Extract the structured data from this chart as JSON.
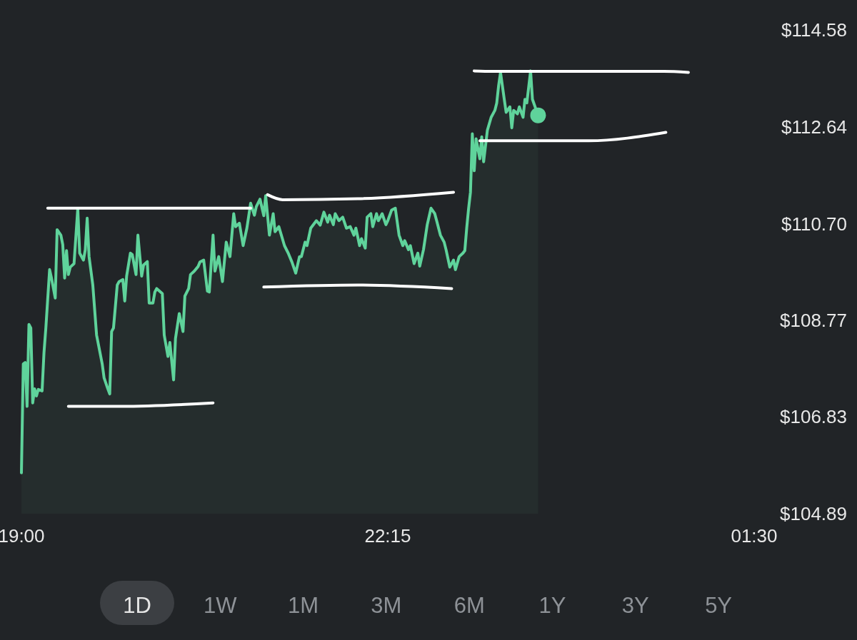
{
  "chart_data": {
    "type": "area",
    "xlim": [
      "2000-01-01T19:00",
      "2000-01-02T01:30"
    ],
    "ylim": [
      104.89,
      114.58
    ],
    "xticks": [
      {
        "value": "2000-01-01T19:00",
        "label": "19:00"
      },
      {
        "value": "2000-01-01T22:15",
        "label": "22:15"
      },
      {
        "value": "2000-01-02T01:30",
        "label": "01:30"
      }
    ],
    "yticks": [
      {
        "value": 104.89,
        "label": "$104.89"
      },
      {
        "value": 106.83,
        "label": "$106.83"
      },
      {
        "value": 108.77,
        "label": "$108.77"
      },
      {
        "value": 110.7,
        "label": "$110.70"
      },
      {
        "value": 112.64,
        "label": "$112.64"
      },
      {
        "value": 114.58,
        "label": "$114.58"
      }
    ],
    "grid": false,
    "annotations": [
      "1D",
      "1W",
      "1M",
      "3M",
      "6M",
      "1Y",
      "3Y",
      "5Y"
    ],
    "series": [
      {
        "color": "#5fd39b",
        "x": [
          "2000-01-01T19:00",
          "2000-01-01T19:01",
          "2000-01-01T19:02",
          "2000-01-01T19:03",
          "2000-01-01T19:04",
          "2000-01-01T19:05",
          "2000-01-01T19:06",
          "2000-01-01T19:07",
          "2000-01-01T19:08",
          "2000-01-01T19:09",
          "2000-01-01T19:11",
          "2000-01-01T19:12",
          "2000-01-01T19:13",
          "2000-01-01T19:15",
          "2000-01-01T19:16",
          "2000-01-01T19:18",
          "2000-01-01T19:19",
          "2000-01-01T19:21",
          "2000-01-01T19:22",
          "2000-01-01T19:23",
          "2000-01-01T19:24",
          "2000-01-01T19:25",
          "2000-01-01T19:26",
          "2000-01-01T19:28",
          "2000-01-01T19:30",
          "2000-01-01T19:31",
          "2000-01-01T19:33",
          "2000-01-01T19:34",
          "2000-01-01T19:35",
          "2000-01-01T19:36",
          "2000-01-01T19:38",
          "2000-01-01T19:40",
          "2000-01-01T19:43",
          "2000-01-01T19:44",
          "2000-01-01T19:46",
          "2000-01-01T19:47",
          "2000-01-01T19:48",
          "2000-01-01T19:49",
          "2000-01-01T19:51",
          "2000-01-01T19:52",
          "2000-01-01T19:54",
          "2000-01-01T19:55",
          "2000-01-01T19:56",
          "2000-01-01T19:58",
          "2000-01-01T19:59",
          "2000-01-01T20:01",
          "2000-01-01T20:02",
          "2000-01-01T20:04",
          "2000-01-01T20:05",
          "2000-01-01T20:07",
          "2000-01-01T20:08",
          "2000-01-01T20:10",
          "2000-01-01T20:11",
          "2000-01-01T20:12",
          "2000-01-01T20:15",
          "2000-01-01T20:16",
          "2000-01-01T20:18",
          "2000-01-01T20:19",
          "2000-01-01T20:21",
          "2000-01-01T20:22",
          "2000-01-01T20:24",
          "2000-01-01T20:26",
          "2000-01-01T20:27",
          "2000-01-01T20:29",
          "2000-01-01T20:30",
          "2000-01-01T20:32",
          "2000-01-01T20:34",
          "2000-01-01T20:35",
          "2000-01-01T20:37",
          "2000-01-01T20:39",
          "2000-01-01T20:40",
          "2000-01-01T20:42",
          "2000-01-01T20:43",
          "2000-01-01T20:45",
          "2000-01-01T20:47",
          "2000-01-01T20:49",
          "2000-01-01T20:51",
          "2000-01-01T20:53",
          "2000-01-01T20:54",
          "2000-01-01T20:56",
          "2000-01-01T20:58",
          "2000-01-01T21:00",
          "2000-01-01T21:02",
          "2000-01-01T21:04",
          "2000-01-01T21:05",
          "2000-01-01T21:07",
          "2000-01-01T21:09",
          "2000-01-01T21:10",
          "2000-01-01T21:12",
          "2000-01-01T21:14",
          "2000-01-01T21:15",
          "2000-01-01T21:17",
          "2000-01-01T21:20",
          "2000-01-01T21:22",
          "2000-01-01T21:24",
          "2000-01-01T21:26",
          "2000-01-01T21:28",
          "2000-01-01T21:29",
          "2000-01-01T21:31",
          "2000-01-01T21:32",
          "2000-01-01T21:34",
          "2000-01-01T21:37",
          "2000-01-01T21:39",
          "2000-01-01T21:41",
          "2000-01-01T21:43",
          "2000-01-01T21:44",
          "2000-01-01T21:46",
          "2000-01-01T21:47",
          "2000-01-01T21:49",
          "2000-01-01T21:51",
          "2000-01-01T21:53",
          "2000-01-01T21:55",
          "2000-01-01T21:57",
          "2000-01-01T21:58",
          "2000-01-01T22:00",
          "2000-01-01T22:01",
          "2000-01-01T22:03",
          "2000-01-01T22:04",
          "2000-01-01T22:06",
          "2000-01-01T22:07",
          "2000-01-01T22:09",
          "2000-01-01T22:10",
          "2000-01-01T22:12",
          "2000-01-01T22:14",
          "2000-01-01T22:15",
          "2000-01-01T22:17",
          "2000-01-01T22:19",
          "2000-01-01T22:21",
          "2000-01-01T22:23",
          "2000-01-01T22:24",
          "2000-01-01T22:26",
          "2000-01-01T22:27",
          "2000-01-01T22:29",
          "2000-01-01T22:31",
          "2000-01-01T22:32",
          "2000-01-01T22:34",
          "2000-01-01T22:36",
          "2000-01-01T22:38",
          "2000-01-01T22:40",
          "2000-01-01T22:41",
          "2000-01-01T22:43",
          "2000-01-01T22:45",
          "2000-01-01T22:46",
          "2000-01-01T22:48",
          "2000-01-01T22:50",
          "2000-01-01T22:51",
          "2000-01-01T22:53",
          "2000-01-01T22:55",
          "2000-01-01T22:56",
          "2000-01-01T22:57",
          "2000-01-01T22:58",
          "2000-01-01T22:59",
          "2000-01-01T23:00",
          "2000-01-01T23:01",
          "2000-01-01T23:02",
          "2000-01-01T23:04",
          "2000-01-01T23:05",
          "2000-01-01T23:06",
          "2000-01-01T23:08",
          "2000-01-01T23:10",
          "2000-01-01T23:12",
          "2000-01-01T23:13",
          "2000-01-01T23:14",
          "2000-01-01T23:15",
          "2000-01-01T23:17",
          "2000-01-01T23:18",
          "2000-01-01T23:20",
          "2000-01-01T23:21",
          "2000-01-01T23:22",
          "2000-01-01T23:24",
          "2000-01-01T23:25",
          "2000-01-01T23:27",
          "2000-01-01T23:28",
          "2000-01-01T23:29",
          "2000-01-01T23:31",
          "2000-01-01T23:32",
          "2000-01-01T23:35"
        ],
        "values": [
          105.71,
          107.89,
          107.92,
          107.04,
          108.68,
          108.61,
          107.11,
          107.39,
          107.25,
          107.38,
          107.35,
          108.11,
          108.61,
          109.78,
          109.61,
          109.21,
          110.58,
          110.47,
          110.28,
          109.61,
          110.16,
          109.68,
          109.83,
          109.9,
          111.0,
          110.11,
          109.97,
          110.18,
          110.81,
          110.04,
          109.47,
          108.47,
          107.89,
          107.61,
          107.39,
          107.29,
          108.54,
          108.61,
          109.47,
          109.54,
          109.58,
          109.15,
          109.65,
          110.11,
          110.08,
          109.68,
          110.47,
          109.65,
          109.87,
          109.94,
          109.11,
          109.11,
          109.33,
          109.4,
          109.3,
          108.47,
          108.04,
          108.32,
          107.57,
          108.4,
          108.9,
          108.54,
          109.25,
          109.4,
          109.68,
          109.75,
          109.84,
          109.93,
          109.97,
          109.35,
          109.33,
          110.47,
          109.75,
          110.04,
          109.54,
          110.33,
          110.04,
          110.9,
          110.64,
          110.71,
          110.26,
          110.61,
          111.11,
          110.87,
          111.04,
          111.19,
          110.86,
          111.26,
          110.47,
          110.9,
          110.54,
          110.64,
          110.26,
          110.11,
          109.93,
          109.71,
          110.04,
          110.04,
          110.33,
          110.26,
          110.61,
          110.76,
          110.67,
          110.93,
          110.73,
          110.87,
          110.68,
          110.9,
          110.76,
          110.83,
          110.61,
          110.64,
          110.47,
          110.61,
          110.26,
          110.4,
          110.21,
          110.83,
          110.9,
          110.64,
          110.9,
          110.76,
          110.9,
          110.68,
          110.76,
          110.97,
          111.01,
          110.47,
          110.26,
          110.36,
          110.18,
          110.26,
          109.9,
          110.11,
          109.85,
          110.18,
          110.68,
          111.01,
          110.9,
          110.76,
          110.47,
          110.33,
          110.18,
          109.83,
          109.97,
          109.78,
          110.04,
          110.11,
          110.16,
          110.61,
          111.0,
          111.33,
          112.5,
          111.76,
          112.4,
          112.0,
          112.44,
          111.94,
          112.57,
          112.83,
          112.97,
          113.12,
          113.47,
          113.73,
          113.19,
          112.93,
          113.04,
          112.62,
          112.97,
          112.9,
          113.04,
          112.83,
          113.19,
          113.12,
          113.76,
          113.19,
          112.87
        ]
      },
      {
        "type": "line",
        "color": "#ffffff",
        "x": [
          "2000-01-01T19:14",
          "2000-01-01T21:02"
        ],
        "values": [
          111.01,
          111.01
        ]
      },
      {
        "type": "line",
        "color": "#ffffff",
        "x": [
          "2000-01-01T19:25",
          "2000-01-01T19:53",
          "2000-01-01T20:42"
        ],
        "values": [
          107.04,
          107.04,
          107.11
        ]
      },
      {
        "type": "line",
        "color": "#ffffff",
        "x": [
          "2000-01-01T21:11",
          "2000-01-01T21:19",
          "2000-01-01T21:59",
          "2000-01-01T22:50"
        ],
        "values": [
          111.28,
          111.18,
          111.2,
          111.33
        ]
      },
      {
        "type": "line",
        "color": "#ffffff",
        "x": [
          "2000-01-01T21:09",
          "2000-01-01T21:59",
          "2000-01-01T22:49"
        ],
        "values": [
          109.43,
          109.47,
          109.4
        ]
      },
      {
        "type": "line",
        "color": "#ffffff",
        "x": [
          "2000-01-01T23:01",
          "2000-01-01T23:11",
          "2000-01-02T00:42",
          "2000-01-02T00:55"
        ],
        "values": [
          113.76,
          113.75,
          113.75,
          113.73
        ]
      },
      {
        "type": "line",
        "color": "#ffffff",
        "x": [
          "2000-01-01T23:04",
          "2000-01-02T00:02",
          "2000-01-02T00:43"
        ],
        "values": [
          112.36,
          112.36,
          112.53
        ]
      }
    ]
  }
}
